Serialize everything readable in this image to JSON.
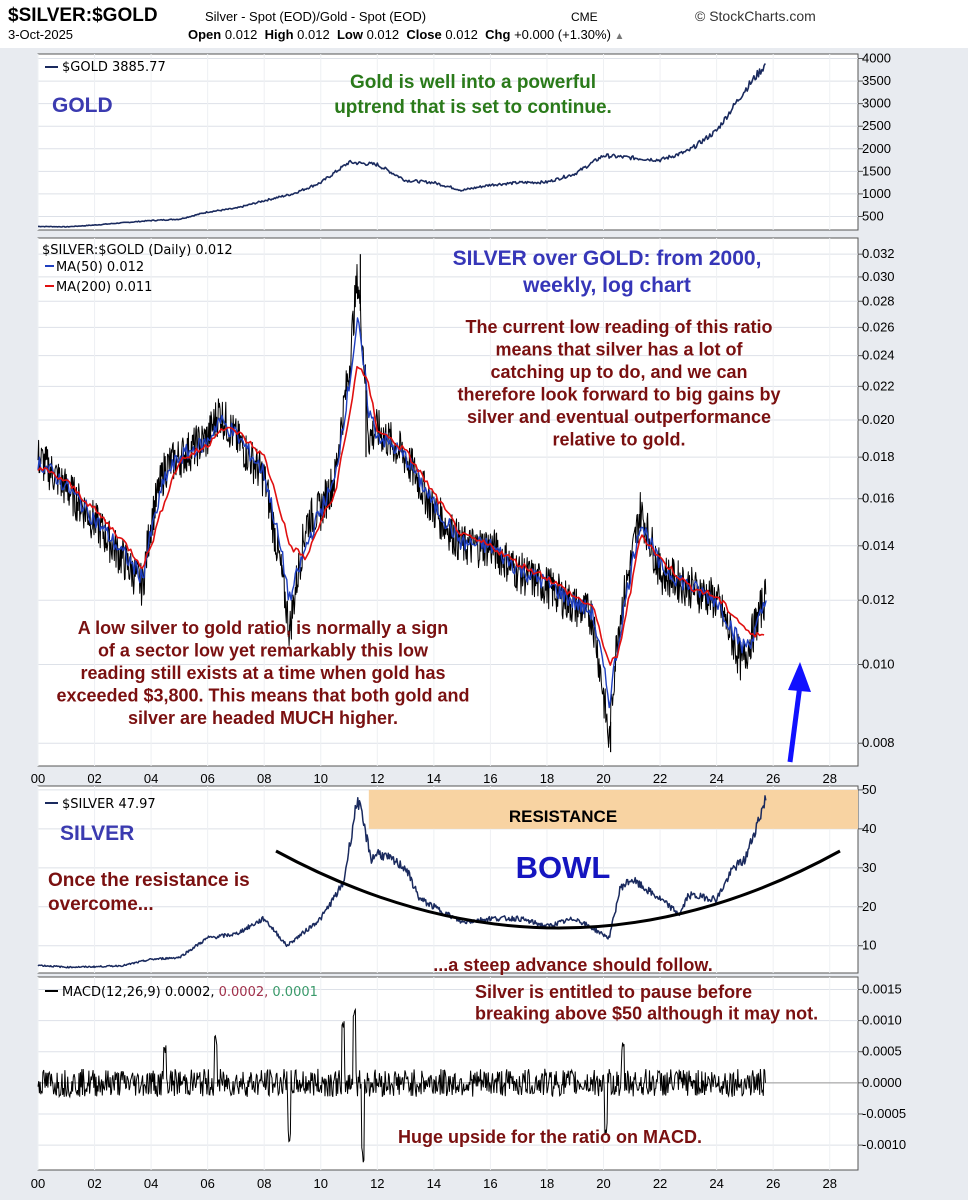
{
  "header": {
    "symbol": "$SILVER:$GOLD",
    "description": "Silver - Spot (EOD)/Gold - Spot (EOD)",
    "exchange": "CME",
    "brand": "© StockCharts.com",
    "date": "3-Oct-2025",
    "open_label": "Open",
    "open_value": "0.012",
    "high_label": "High",
    "high_value": "0.012",
    "low_label": "Low",
    "low_value": "0.012",
    "close_label": "Close",
    "close_value": "0.012",
    "chg_label": "Chg",
    "chg_value": "+0.000 (+1.30%)"
  },
  "colors": {
    "price_line": "#1a2a5e",
    "ma50": "#1f3fbf",
    "ma200": "#e01010",
    "annotation_red": "#7a1010",
    "annotation_blue": "#2020c0",
    "annotation_green": "#2a7a1a",
    "resistance_fill": "#f8d3a2",
    "panel_bg": "#ffffff",
    "frame_bg": "#e8ebf0"
  },
  "x_axis_labels": [
    "00",
    "02",
    "04",
    "06",
    "08",
    "10",
    "12",
    "14",
    "16",
    "18",
    "20",
    "22",
    "24",
    "26",
    "28"
  ],
  "chart_data": [
    {
      "type": "line",
      "panel": "gold",
      "legend": "$GOLD 3885.77",
      "title": "GOLD",
      "x": [
        2000,
        2001,
        2002,
        2003,
        2004,
        2005,
        2006,
        2007,
        2008,
        2009,
        2010,
        2011,
        2012,
        2013,
        2014,
        2015,
        2016,
        2017,
        2018,
        2019,
        2020,
        2021,
        2022,
        2023,
        2024,
        2025,
        2025.75
      ],
      "series": [
        {
          "name": "$GOLD",
          "values": [
            280,
            270,
            310,
            360,
            410,
            440,
            600,
            680,
            850,
            1000,
            1250,
            1700,
            1650,
            1300,
            1250,
            1080,
            1200,
            1250,
            1260,
            1450,
            1850,
            1800,
            1750,
            1950,
            2400,
            3300,
            3885
          ]
        }
      ],
      "yticks": [
        500,
        1000,
        1500,
        2000,
        2500,
        3000,
        3500,
        4000
      ],
      "ylim": [
        200,
        4100
      ],
      "xlim": [
        2000,
        2029
      ],
      "annotation": "Gold is well into a powerful uptrend that is set to continue."
    },
    {
      "type": "line",
      "panel": "ratio",
      "scale": "log",
      "legend_main": "$SILVER:$GOLD (Daily) 0.012",
      "legend_ma50": "MA(50) 0.012",
      "legend_ma200": "MA(200) 0.011",
      "x": [
        2000,
        2001,
        2002,
        2003,
        2003.7,
        2004,
        2004.5,
        2005,
        2006,
        2006.4,
        2007,
        2008,
        2008.9,
        2009.5,
        2010,
        2010.5,
        2011,
        2011.3,
        2011.7,
        2012,
        2013,
        2014,
        2015,
        2016,
        2017,
        2018,
        2019,
        2019.6,
        2020.2,
        2020.5,
        2021,
        2021.3,
        2022,
        2023,
        2024,
        2024.9,
        2025.3,
        2025.75
      ],
      "series": [
        {
          "name": "$SILVER:$GOLD",
          "values": [
            0.018,
            0.0165,
            0.015,
            0.0135,
            0.0125,
            0.015,
            0.0175,
            0.018,
            0.019,
            0.0205,
            0.019,
            0.017,
            0.011,
            0.015,
            0.0155,
            0.017,
            0.023,
            0.03,
            0.019,
            0.0195,
            0.018,
            0.0155,
            0.014,
            0.014,
            0.013,
            0.0125,
            0.0118,
            0.0115,
            0.008,
            0.011,
            0.0135,
            0.0155,
            0.013,
            0.0125,
            0.012,
            0.01,
            0.011,
            0.0122
          ]
        },
        {
          "name": "MA(50)",
          "values": [
            0.0178,
            0.0166,
            0.0151,
            0.0137,
            0.0128,
            0.0145,
            0.017,
            0.018,
            0.0188,
            0.02,
            0.0192,
            0.0172,
            0.012,
            0.014,
            0.0155,
            0.0168,
            0.022,
            0.0265,
            0.0205,
            0.0192,
            0.018,
            0.0157,
            0.0141,
            0.014,
            0.0131,
            0.0126,
            0.0119,
            0.0116,
            0.009,
            0.0105,
            0.0132,
            0.015,
            0.0132,
            0.0125,
            0.012,
            0.0105,
            0.0108,
            0.012
          ]
        },
        {
          "name": "MA(200)",
          "values": [
            0.0175,
            0.0168,
            0.0155,
            0.0142,
            0.0132,
            0.014,
            0.016,
            0.0178,
            0.0186,
            0.0195,
            0.0194,
            0.018,
            0.014,
            0.0135,
            0.015,
            0.0162,
            0.02,
            0.0235,
            0.022,
            0.0195,
            0.0183,
            0.0162,
            0.0144,
            0.014,
            0.0133,
            0.0128,
            0.0121,
            0.0118,
            0.01,
            0.0102,
            0.0125,
            0.0145,
            0.0135,
            0.0125,
            0.0121,
            0.0112,
            0.0108,
            0.011
          ]
        }
      ],
      "yticks": [
        0.008,
        0.01,
        0.012,
        0.014,
        0.016,
        0.018,
        0.02,
        0.022,
        0.024,
        0.026,
        0.028,
        0.03,
        0.032
      ],
      "ytick_labels": [
        "0.008",
        "0.010",
        "0.012",
        "0.014",
        "0.016",
        "0.018",
        "0.020",
        "0.022",
        "0.024",
        "0.026",
        "0.028",
        "0.030",
        "0.032"
      ],
      "ylim": [
        0.0075,
        0.0335
      ],
      "xlim": [
        2000,
        2029
      ],
      "title_annotation": "SILVER over GOLD: from 2000, weekly, log chart",
      "annotation_right": "The current low reading of this ratio means that silver has a lot of catching up to do, and we can therefore look forward to big gains by silver and eventual outperformance relative to gold.",
      "annotation_left": "A low silver to gold ratio, is normally a sign of a sector low yet remarkably this low reading still exists at a time when gold has exceeded $3,800. This means that both gold and silver are headed MUCH higher."
    },
    {
      "type": "line",
      "panel": "silver",
      "legend": "$SILVER 47.97",
      "title": "SILVER",
      "x": [
        2000,
        2001,
        2002,
        2003,
        2004,
        2005,
        2006,
        2007,
        2008,
        2008.8,
        2009.5,
        2010,
        2010.8,
        2011.3,
        2011.8,
        2012,
        2013,
        2013.5,
        2014,
        2015,
        2016,
        2017,
        2018,
        2019,
        2020.2,
        2020.6,
        2021,
        2022,
        2022.7,
        2023,
        2024,
        2024.6,
        2025,
        2025.75
      ],
      "series": [
        {
          "name": "$SILVER",
          "values": [
            5,
            4.5,
            4.6,
            4.9,
            6.5,
            7,
            12,
            13,
            17,
            10,
            14,
            17,
            26,
            48,
            32,
            34,
            30,
            22,
            20,
            16,
            17,
            17,
            15,
            17,
            12,
            25,
            27,
            22,
            18,
            23,
            22,
            30,
            32,
            47.97
          ]
        }
      ],
      "yticks": [
        10,
        20,
        30,
        40,
        50
      ],
      "ylim": [
        3,
        51
      ],
      "xlim": [
        2000,
        2029
      ],
      "resistance_label": "RESISTANCE",
      "resistance_range": [
        40,
        50
      ],
      "bowl_label": "BOWL",
      "annotation_left": "Once the resistance is overcome...",
      "annotation_bottom": "...a steep advance should follow."
    },
    {
      "type": "line",
      "panel": "macd",
      "legend_main": "MACD(12,26,9) 0.0002,",
      "legend_signal": "0.0002,",
      "legend_hist": "0.0001",
      "yticks": [
        -0.001,
        -0.0005,
        0.0,
        0.0005,
        0.001,
        0.0015
      ],
      "ytick_labels": [
        "-0.0010",
        "-0.0005",
        "0.0000",
        "0.0005",
        "0.0010",
        "0.0015"
      ],
      "ylim": [
        -0.0014,
        0.0017
      ],
      "xlim": [
        2000,
        2029
      ],
      "spikes": [
        {
          "x": 2004.5,
          "v": 0.0006
        },
        {
          "x": 2006.3,
          "v": 0.0007
        },
        {
          "x": 2008.9,
          "v": -0.0009
        },
        {
          "x": 2010.8,
          "v": 0.0009
        },
        {
          "x": 2011.2,
          "v": 0.0013
        },
        {
          "x": 2011.5,
          "v": -0.0013
        },
        {
          "x": 2020.1,
          "v": -0.0008
        },
        {
          "x": 2020.7,
          "v": 0.0006
        }
      ],
      "annotation_top": "Silver is entitled to pause before breaking above $50 although it may not.",
      "annotation_bottom": "Huge upside for the ratio on MACD."
    }
  ]
}
